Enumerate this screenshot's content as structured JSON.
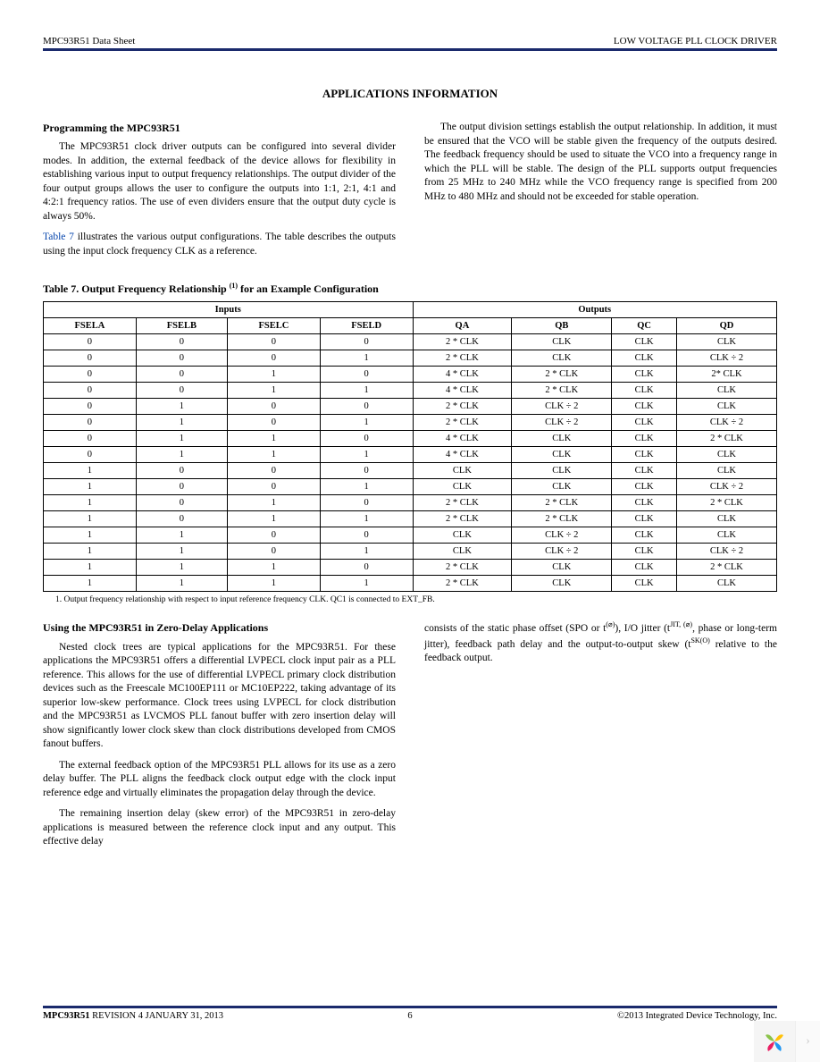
{
  "header": {
    "left": "MPC93R51 Data Sheet",
    "right": "LOW VOLTAGE PLL CLOCK DRIVER"
  },
  "section_title": "APPLICATIONS INFORMATION",
  "programming": {
    "heading": "Programming the MPC93R51",
    "p1": "The MPC93R51 clock driver outputs can be configured into several divider modes. In addition, the external feedback of the device allows for flexibility in establishing various input to output frequency relationships. The output divider of the four output groups allows the user to configure the outputs into 1:1, 2:1, 4:1 and 4:2:1 frequency ratios. The use of even dividers ensure that the output duty cycle is always 50%.",
    "p2a": "Table 7",
    "p2b": " illustrates the various output configurations. The table describes the outputs using the input clock frequency CLK as a reference.",
    "p_right": "The output division settings establish the output relationship. In addition, it must be ensured that the VCO will be stable given the frequency of the outputs desired. The feedback frequency should be used to situate the VCO into a frequency range in which the PLL will be stable. The design of the PLL supports output frequencies from 25 MHz to 240 MHz while the VCO frequency range is specified from 200 MHz to 480 MHz and should not be exceeded for stable operation."
  },
  "table7": {
    "title_a": "Table 7. Output Frequency Relationship",
    "title_sup": "(1)",
    "title_b": " for an Example Configuration",
    "group_inputs": "Inputs",
    "group_outputs": "Outputs",
    "cols": [
      "FSELA",
      "FSELB",
      "FSELC",
      "FSELD",
      "QA",
      "QB",
      "QC",
      "QD"
    ],
    "rows": [
      [
        "0",
        "0",
        "0",
        "0",
        "2 * CLK",
        "CLK",
        "CLK",
        "CLK"
      ],
      [
        "0",
        "0",
        "0",
        "1",
        "2 * CLK",
        "CLK",
        "CLK",
        "CLK ÷ 2"
      ],
      [
        "0",
        "0",
        "1",
        "0",
        "4 * CLK",
        "2 * CLK",
        "CLK",
        "2* CLK"
      ],
      [
        "0",
        "0",
        "1",
        "1",
        "4 * CLK",
        "2 * CLK",
        "CLK",
        "CLK"
      ],
      [
        "0",
        "1",
        "0",
        "0",
        "2 * CLK",
        "CLK ÷ 2",
        "CLK",
        "CLK"
      ],
      [
        "0",
        "1",
        "0",
        "1",
        "2 * CLK",
        "CLK ÷ 2",
        "CLK",
        "CLK ÷ 2"
      ],
      [
        "0",
        "1",
        "1",
        "0",
        "4 * CLK",
        "CLK",
        "CLK",
        "2 * CLK"
      ],
      [
        "0",
        "1",
        "1",
        "1",
        "4 * CLK",
        "CLK",
        "CLK",
        "CLK"
      ],
      [
        "1",
        "0",
        "0",
        "0",
        "CLK",
        "CLK",
        "CLK",
        "CLK"
      ],
      [
        "1",
        "0",
        "0",
        "1",
        "CLK",
        "CLK",
        "CLK",
        "CLK ÷ 2"
      ],
      [
        "1",
        "0",
        "1",
        "0",
        "2 * CLK",
        "2 * CLK",
        "CLK",
        "2 * CLK"
      ],
      [
        "1",
        "0",
        "1",
        "1",
        "2 * CLK",
        "2 * CLK",
        "CLK",
        "CLK"
      ],
      [
        "1",
        "1",
        "0",
        "0",
        "CLK",
        "CLK ÷ 2",
        "CLK",
        "CLK"
      ],
      [
        "1",
        "1",
        "0",
        "1",
        "CLK",
        "CLK ÷ 2",
        "CLK",
        "CLK ÷ 2"
      ],
      [
        "1",
        "1",
        "1",
        "0",
        "2 * CLK",
        "CLK",
        "CLK",
        "2 * CLK"
      ],
      [
        "1",
        "1",
        "1",
        "1",
        "2 * CLK",
        "CLK",
        "CLK",
        "CLK"
      ]
    ],
    "footnote": "1. Output frequency relationship with respect to input reference frequency CLK. QC1 is connected to EXT_FB."
  },
  "zero_delay": {
    "heading": "Using the MPC93R51 in Zero-Delay Applications",
    "p1": "Nested clock trees are typical applications for the MPC93R51. For these applications the MPC93R51 offers a differential LVPECL clock input pair as a PLL reference. This allows for the use of differential LVPECL primary clock distribution devices such as the Freescale MC100EP111 or MC10EP222, taking advantage of its superior low-skew performance. Clock trees using LVPECL for clock distribution and the MPC93R51 as LVCMOS PLL fanout buffer with zero insertion delay will show significantly lower clock skew than clock distributions developed from CMOS fanout buffers.",
    "p2": "The external feedback option of the MPC93R51 PLL allows for its use as a zero delay buffer. The PLL aligns the feedback clock output edge with the clock input reference edge and virtually eliminates the propagation delay through the device.",
    "p3": "The remaining insertion delay (skew error) of the MPC93R51 in zero-delay applications is measured between the reference clock input and any output. This effective delay",
    "p_right_a": "consists of the static phase offset (SPO or t",
    "p_right_sub1": "(⌀)",
    "p_right_b": "), I/O jitter (t",
    "p_right_sub2": "JIT, (⌀)",
    "p_right_c": ", phase or long-term jitter), feedback path delay and the output-to-output skew (t",
    "p_right_sub3": "SK(O)",
    "p_right_d": " relative to the feedback output."
  },
  "footer": {
    "product": "MPC93R51",
    "revision": "REVISION 4   JANUARY 31, 2013",
    "page": "6",
    "copyright": "©2013 Integrated Device Technology, Inc."
  },
  "colors": {
    "rule": "#1a2a6c",
    "link": "#0645ad",
    "petals": [
      "#8bc34a",
      "#ffc107",
      "#2196f3",
      "#e91e63"
    ]
  }
}
